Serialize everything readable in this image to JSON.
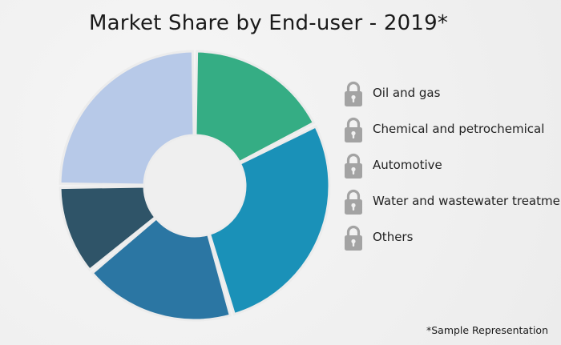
{
  "chart_data": {
    "type": "pie",
    "title": "Market Share by End-user - 2019*",
    "categories": [
      "Oil and gas",
      "Chemical and petrochemical",
      "Automotive",
      "Water and wastewater treatme...",
      "Others"
    ],
    "values": [
      17.5,
      28,
      18.5,
      11,
      25
    ],
    "colors": [
      "#35ad84",
      "#1a91b8",
      "#2b76a3",
      "#2f5468",
      "#b7c9e8"
    ],
    "legend_position": "right",
    "legend_icon": "lock-icon",
    "footnote": "*Sample Representation"
  }
}
